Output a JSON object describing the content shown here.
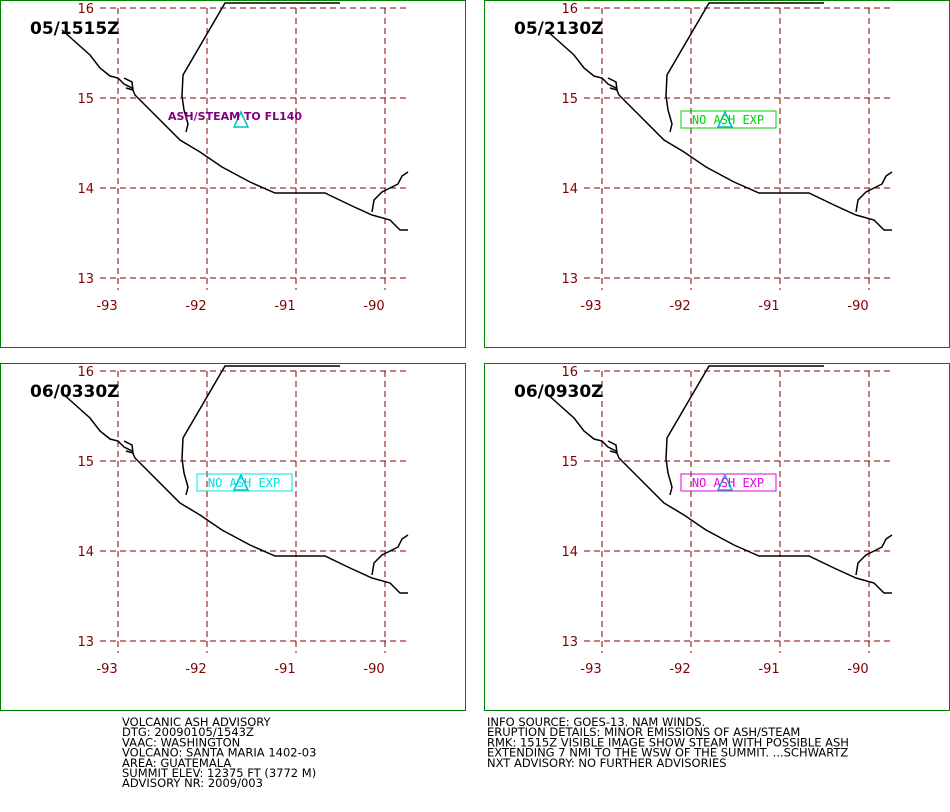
{
  "panels": [
    {
      "time": "05/1515Z",
      "label": "ASH/STEAM TO FL140",
      "label_color": "#800080",
      "boxed": false
    },
    {
      "time": "05/2130Z",
      "label": "NO ASH EXP",
      "label_color": "#00d000",
      "boxed": true
    },
    {
      "time": "06/0330Z",
      "label": "NO ASH EXP",
      "label_color": "#00e0e0",
      "boxed": true
    },
    {
      "time": "06/0930Z",
      "label": "NO ASH EXP",
      "label_color": "#e000e0",
      "boxed": true
    }
  ],
  "lat_labels": [
    16,
    15,
    14,
    13
  ],
  "lon_labels": [
    -93,
    -92,
    -91,
    -90
  ],
  "advisory_left": [
    "VOLCANIC ASH ADVISORY",
    "DTG: 20090105/1543Z",
    "VAAC: WASHINGTON",
    "VOLCANO: SANTA MARIA 1402-03",
    "AREA: GUATEMALA",
    "SUMMIT ELEV: 12375 FT (3772 M)",
    "ADVISORY NR: 2009/003"
  ],
  "advisory_right": [
    "INFO SOURCE: GOES-13. NAM WINDS.",
    "ERUPTION DETAILS: MINOR EMISSIONS OF ASH/STEAM",
    "RMK: 1515Z VISIBLE IMAGE SHOW STEAM WITH POSSIBLE ASH",
    "EXTENDING 7 NMI TO THE WSW OF THE SUMMIT. ...SCHWARTZ",
    "NXT ADVISORY: NO FURTHER ADVISORIES"
  ]
}
